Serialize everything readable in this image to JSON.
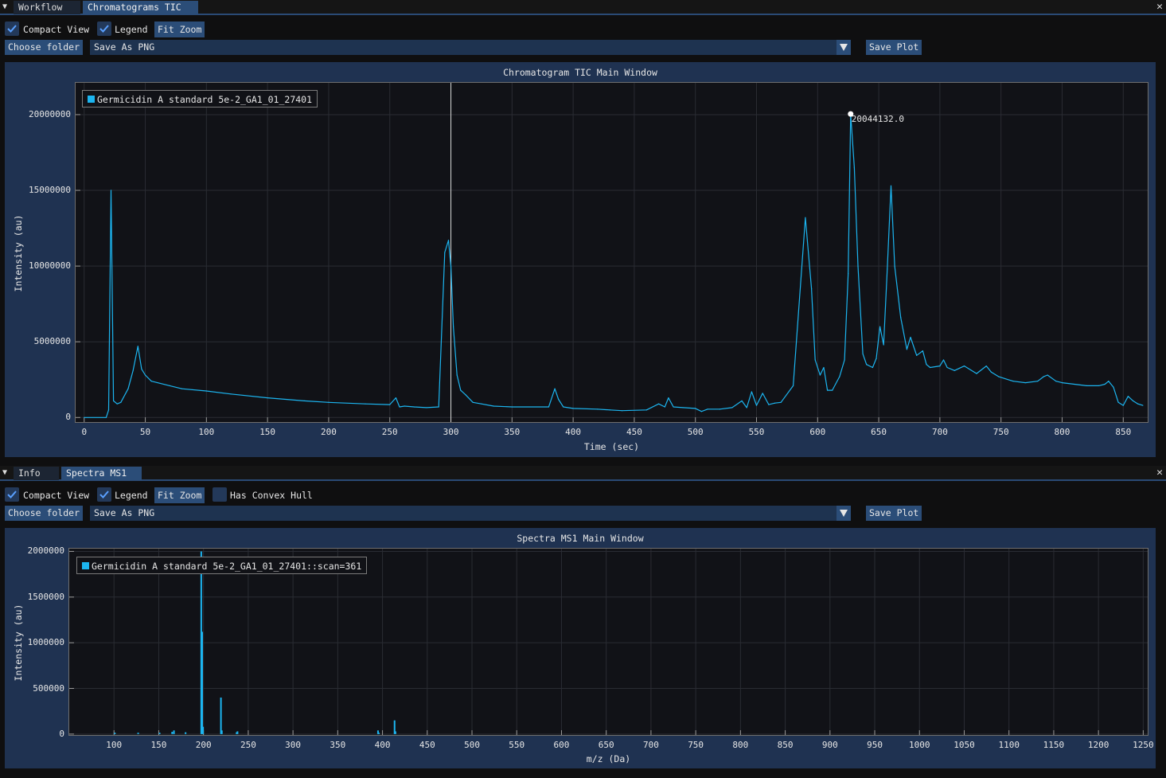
{
  "top": {
    "tabs": [
      "Workflow",
      "Chromatograms TIC"
    ],
    "compact_view": "Compact View",
    "legend": "Legend",
    "fit_zoom": "Fit Zoom",
    "choose_folder": "Choose folder",
    "save_format": "Save As PNG",
    "save_plot": "Save Plot",
    "plot_title": "Chromatogram TIC Main Window",
    "ylabel": "Intensity (au)",
    "xlabel": "Time (sec)",
    "legend_entry": "Germicidin A standard 5e-2_GA1_01_27401",
    "peak_label": "20044132.0"
  },
  "bottom": {
    "tabs": [
      "Info",
      "Spectra MS1"
    ],
    "compact_view": "Compact View",
    "legend": "Legend",
    "fit_zoom": "Fit Zoom",
    "convex_hull": "Has Convex Hull",
    "choose_folder": "Choose folder",
    "save_format": "Save As PNG",
    "save_plot": "Save Plot",
    "plot_title": "Spectra MS1 Main Window",
    "ylabel": "Intensity (au)",
    "xlabel": "m/z (Da)",
    "legend_entry": "Germicidin A standard 5e-2_GA1_01_27401::scan=361"
  },
  "colors": {
    "accent": "#2b4d78",
    "series": "#1cb5f0",
    "checkbox": "#23395a"
  },
  "chart_data": [
    {
      "type": "line",
      "title": "Chromatogram TIC Main Window",
      "xlabel": "Time (sec)",
      "ylabel": "Intensity (au)",
      "xlim": [
        -7,
        870
      ],
      "ylim": [
        -300000,
        22100000
      ],
      "xticks": [
        0,
        50,
        100,
        150,
        200,
        250,
        300,
        350,
        400,
        450,
        500,
        550,
        600,
        650,
        700,
        750,
        800,
        850
      ],
      "yticks": [
        0,
        5000000,
        10000000,
        15000000,
        20000000
      ],
      "cursor_x": 300,
      "annotation": {
        "x": 627,
        "y": 20044132.0,
        "label": "20044132.0"
      },
      "series": [
        {
          "name": "Germicidin A standard 5e-2_GA1_01_27401",
          "x": [
            0,
            18,
            20,
            22,
            24,
            27,
            30,
            36,
            40,
            44,
            47,
            50,
            55,
            60,
            70,
            80,
            100,
            120,
            150,
            180,
            200,
            230,
            250,
            255,
            258,
            262,
            270,
            280,
            290,
            295,
            298,
            300,
            302,
            305,
            308,
            312,
            318,
            325,
            335,
            350,
            380,
            385,
            388,
            392,
            400,
            420,
            430,
            440,
            460,
            470,
            475,
            478,
            482,
            490,
            500,
            505,
            510,
            520,
            530,
            538,
            542,
            546,
            550,
            555,
            560,
            565,
            570,
            580,
            590,
            595,
            598,
            602,
            605,
            608,
            612,
            618,
            622,
            625,
            627,
            630,
            633,
            637,
            640,
            645,
            648,
            651,
            654,
            657,
            660,
            663,
            668,
            673,
            676,
            681,
            686,
            689,
            692,
            700,
            703,
            706,
            712,
            720,
            730,
            738,
            742,
            748,
            760,
            770,
            780,
            785,
            788,
            795,
            800,
            810,
            820,
            830,
            835,
            838,
            842,
            846,
            850,
            854,
            858,
            862,
            866
          ],
          "y": [
            0,
            0,
            500000,
            15000000,
            1100000,
            900000,
            1000000,
            1900000,
            3100000,
            4700000,
            3200000,
            2800000,
            2400000,
            2300000,
            2100000,
            1900000,
            1750000,
            1550000,
            1300000,
            1100000,
            1000000,
            900000,
            850000,
            1300000,
            700000,
            750000,
            700000,
            650000,
            700000,
            10900000,
            11700000,
            10000000,
            6000000,
            2800000,
            1800000,
            1500000,
            1000000,
            900000,
            750000,
            700000,
            700000,
            1900000,
            1200000,
            700000,
            600000,
            550000,
            500000,
            450000,
            500000,
            900000,
            700000,
            1300000,
            700000,
            650000,
            600000,
            400000,
            550000,
            550000,
            650000,
            1100000,
            650000,
            1700000,
            800000,
            1600000,
            850000,
            950000,
            1000000,
            2100000,
            13200000,
            8500000,
            3800000,
            2800000,
            3300000,
            1800000,
            1800000,
            2700000,
            3800000,
            9500000,
            20044132,
            16500000,
            10000000,
            4200000,
            3500000,
            3300000,
            3900000,
            6000000,
            4800000,
            9800000,
            15300000,
            10000000,
            6600000,
            4500000,
            5300000,
            4100000,
            4400000,
            3500000,
            3300000,
            3400000,
            3800000,
            3300000,
            3100000,
            3400000,
            2900000,
            3400000,
            3000000,
            2700000,
            2400000,
            2300000,
            2400000,
            2700000,
            2800000,
            2400000,
            2300000,
            2200000,
            2100000,
            2100000,
            2200000,
            2400000,
            2000000,
            1000000,
            800000,
            1400000,
            1100000,
            900000,
            800000
          ]
        }
      ]
    },
    {
      "type": "bar",
      "title": "Spectra MS1 Main Window",
      "xlabel": "m/z (Da)",
      "ylabel": "Intensity (au)",
      "xlim": [
        50,
        1255
      ],
      "ylim": [
        -10000,
        2030000
      ],
      "xticks": [
        100,
        150,
        200,
        250,
        300,
        350,
        400,
        450,
        500,
        550,
        600,
        650,
        700,
        750,
        800,
        850,
        900,
        950,
        1000,
        1050,
        1100,
        1150,
        1200,
        1250
      ],
      "yticks": [
        0,
        500000,
        1000000,
        1500000,
        2000000
      ],
      "series": [
        {
          "name": "Germicidin A standard 5e-2_GA1_01_27401::scan=361",
          "x": [
            101,
            127,
            151,
            165,
            167,
            180,
            197.5,
            198.5,
            199.5,
            219.5,
            220.5,
            237,
            238,
            395,
            396,
            413.5,
            414.5
          ],
          "y": [
            15000,
            15000,
            15000,
            25000,
            40000,
            20000,
            2000000,
            1120000,
            80000,
            400000,
            40000,
            20000,
            30000,
            40000,
            15000,
            150000,
            30000
          ]
        }
      ]
    }
  ]
}
